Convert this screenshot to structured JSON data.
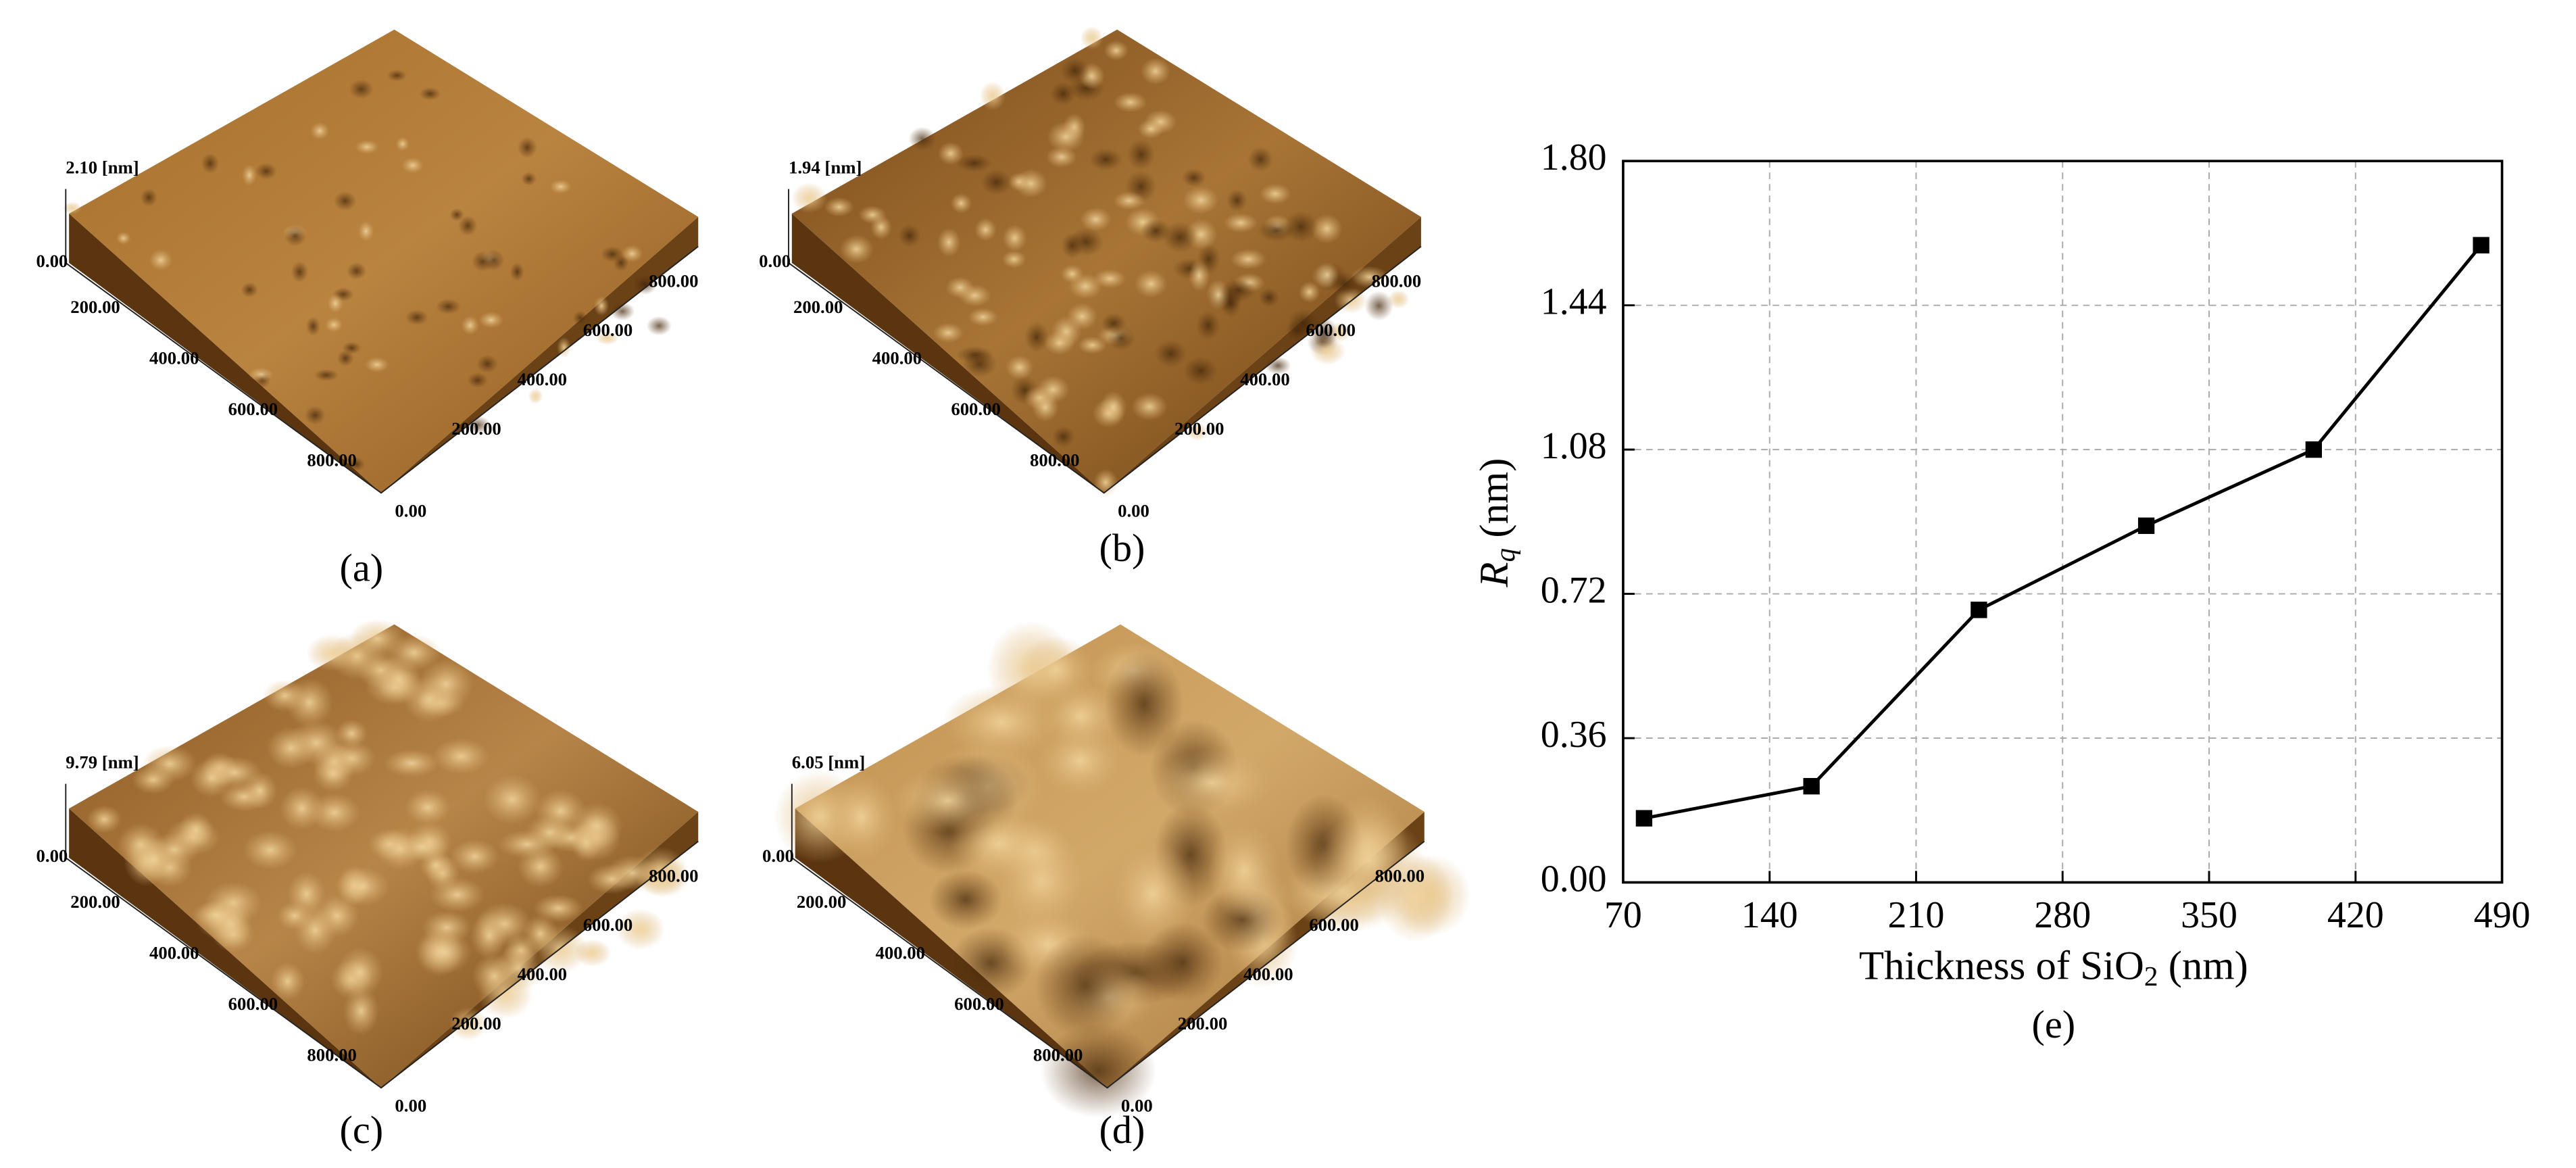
{
  "panels": [
    {
      "caption": "(a)",
      "z_label": "2.10 [nm]",
      "z_zero": "0.00",
      "left_ticks": [
        "200.00",
        "400.00",
        "600.00",
        "800.00"
      ],
      "right_ticks": [
        "0.00",
        "200.00",
        "400.00",
        "600.00",
        "800.00"
      ]
    },
    {
      "caption": "(b)",
      "z_label": "1.94 [nm]",
      "z_zero": "0.00",
      "left_ticks": [
        "200.00",
        "400.00",
        "600.00",
        "800.00"
      ],
      "right_ticks": [
        "0.00",
        "200.00",
        "400.00",
        "600.00",
        "800.00"
      ]
    },
    {
      "caption": "(c)",
      "z_label": "9.79 [nm]",
      "z_zero": "0.00",
      "left_ticks": [
        "200.00",
        "400.00",
        "600.00",
        "800.00"
      ],
      "right_ticks": [
        "0.00",
        "200.00",
        "400.00",
        "600.00",
        "800.00"
      ]
    },
    {
      "caption": "(d)",
      "z_label": "6.05 [nm]",
      "z_zero": "0.00",
      "left_ticks": [
        "200.00",
        "400.00",
        "600.00",
        "800.00"
      ],
      "right_ticks": [
        "0.00",
        "200.00",
        "400.00",
        "600.00",
        "800.00"
      ]
    }
  ],
  "chart_data": {
    "type": "line",
    "x_label": {
      "text": "Thickness of SiO",
      "sub": "2",
      "unit": " (nm)"
    },
    "y_label": {
      "text": "R",
      "sub": "q",
      "unit": " (nm)"
    },
    "caption": "(e)",
    "x": [
      80,
      160,
      240,
      320,
      400,
      480
    ],
    "series": [
      {
        "color": "#000000",
        "values": [
          0.16,
          0.24,
          0.68,
          0.89,
          1.08,
          1.59
        ]
      }
    ],
    "xlim": [
      70,
      490
    ],
    "xticks": [
      70,
      140,
      210,
      280,
      350,
      420,
      490
    ],
    "ylim": [
      0,
      1.8
    ],
    "yticks": [
      {
        "value": 0,
        "label": "0.00"
      },
      {
        "value": 0.36,
        "label": "0.36"
      },
      {
        "value": 0.72,
        "label": "0.72"
      },
      {
        "value": 1.08,
        "label": "1.08"
      },
      {
        "value": 1.44,
        "label": "1.44"
      },
      {
        "value": 1.8,
        "label": "1.80"
      }
    ],
    "grid": true
  }
}
